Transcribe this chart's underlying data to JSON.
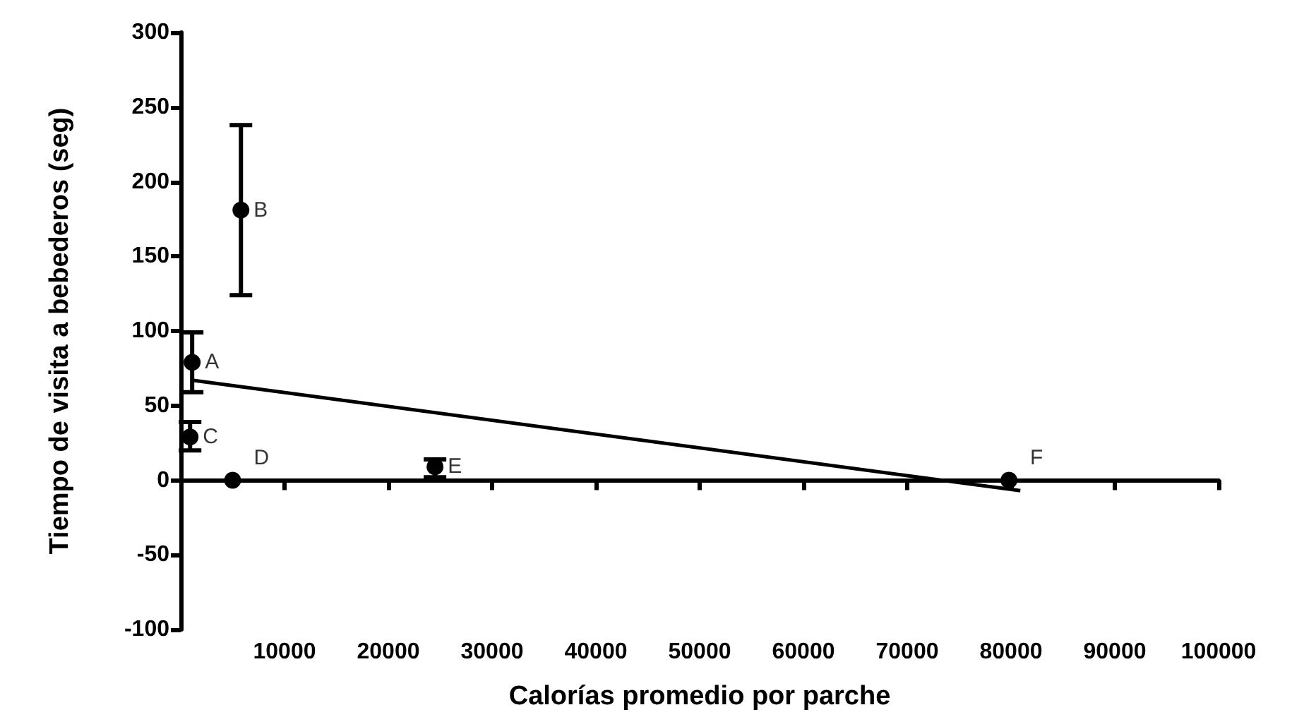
{
  "chart_data": {
    "type": "scatter",
    "xlabel": "Calorías promedio por parche",
    "ylabel": "Tiempo de visita a bebederos (seg)",
    "xlim": [
      0,
      100000
    ],
    "xticks": [
      10000,
      20000,
      30000,
      40000,
      50000,
      60000,
      70000,
      80000,
      90000,
      100000
    ],
    "ylim": [
      -100,
      300
    ],
    "yticks": [
      -100,
      -50,
      0,
      50,
      100,
      150,
      200,
      250,
      300
    ],
    "line_style": "solid",
    "series": [
      {
        "marker": "circle",
        "color": "#000000",
        "x": [
          1100,
          5800,
          900,
          5000,
          24500,
          79800
        ],
        "values": [
          79,
          181,
          29,
          0,
          9,
          0
        ],
        "errors": [
          [
            59,
            99
          ],
          [
            124,
            238
          ],
          [
            20,
            39
          ],
          null,
          [
            2,
            14
          ],
          null
        ]
      },
      {
        "type": "line",
        "marker": "none",
        "color": "#000000",
        "x": [
          1100,
          80900
        ],
        "values": [
          67,
          -7
        ]
      }
    ],
    "annotations": [
      {
        "text": "A",
        "x": 1100,
        "y": 79
      },
      {
        "text": "B",
        "x": 5800,
        "y": 181
      },
      {
        "text": "C",
        "x": 900,
        "y": 29
      },
      {
        "text": "D",
        "x": 5000,
        "y": 0
      },
      {
        "text": "E",
        "x": 24500,
        "y": 9
      },
      {
        "text": "F",
        "x": 79800,
        "y": 0
      }
    ]
  }
}
